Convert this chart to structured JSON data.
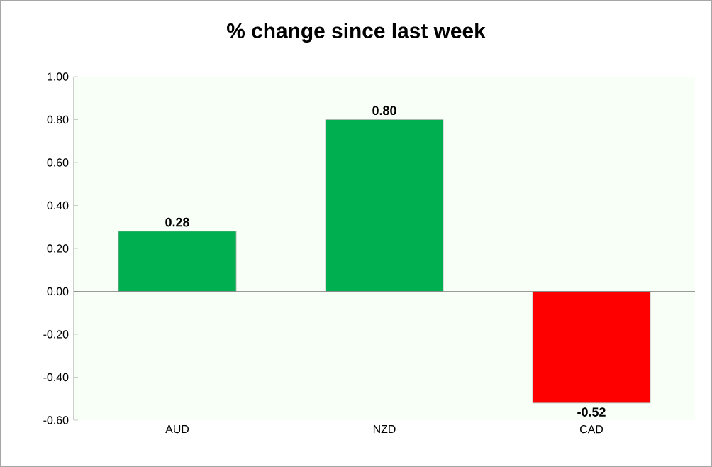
{
  "chart_data": {
    "type": "bar",
    "title": "% change since last week",
    "categories": [
      "AUD",
      "NZD",
      "CAD"
    ],
    "values": [
      0.28,
      0.8,
      -0.52
    ],
    "colors": [
      "#00b050",
      "#00b050",
      "#ff0000"
    ],
    "ylim": [
      -0.6,
      1.0
    ],
    "yticks": [
      {
        "value": -0.6,
        "label": "-0.60"
      },
      {
        "value": -0.4,
        "label": "-0.40"
      },
      {
        "value": -0.2,
        "label": "-0.20"
      },
      {
        "value": 0,
        "label": "0.00"
      },
      {
        "value": 0.2,
        "label": "0.20"
      },
      {
        "value": 0.4,
        "label": "0.40"
      },
      {
        "value": 0.6,
        "label": "0.60"
      },
      {
        "value": 0.8,
        "label": "0.80"
      },
      {
        "value": 1.0,
        "label": "1.00"
      }
    ],
    "value_labels": [
      "0.28",
      "0.80",
      "-0.52"
    ]
  }
}
